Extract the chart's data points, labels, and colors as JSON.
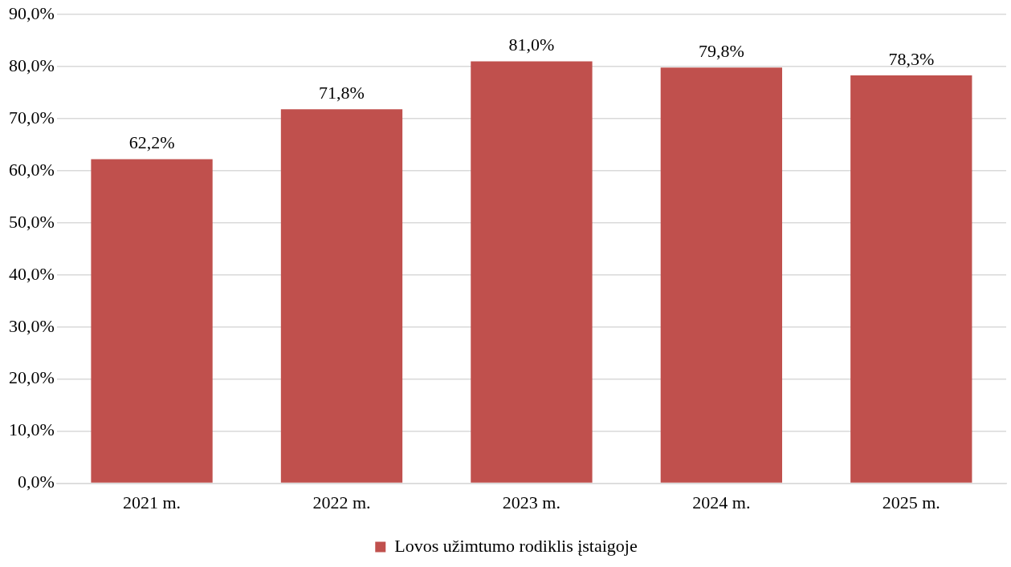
{
  "chart_data": {
    "type": "bar",
    "categories": [
      "2021 m.",
      "2022 m.",
      "2023 m.",
      "2024 m.",
      "2025 m."
    ],
    "series": [
      {
        "name": "Lovos užimtumo rodiklis įstaigoje",
        "color": "#c0504d",
        "values": [
          62.2,
          71.8,
          81.0,
          79.8,
          78.3
        ],
        "value_labels": [
          "62,2%",
          "71,8%",
          "81,0%",
          "79,8%",
          "78,3%"
        ]
      }
    ],
    "ylim": [
      0,
      90
    ],
    "yticks": [
      {
        "value": 0,
        "label": "0,0%"
      },
      {
        "value": 10,
        "label": "10,0%"
      },
      {
        "value": 20,
        "label": "20,0%"
      },
      {
        "value": 30,
        "label": "30,0%"
      },
      {
        "value": 40,
        "label": "40,0%"
      },
      {
        "value": 50,
        "label": "50,0%"
      },
      {
        "value": 60,
        "label": "60,0%"
      },
      {
        "value": 70,
        "label": "70,0%"
      },
      {
        "value": 80,
        "label": "80,0%"
      },
      {
        "value": 90,
        "label": "90,0%"
      }
    ],
    "grid": "y",
    "legend": "bottom"
  }
}
